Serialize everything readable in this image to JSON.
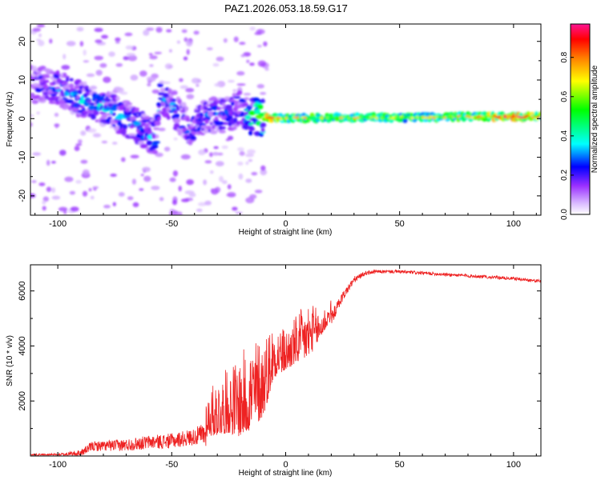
{
  "title": "PAZ1.2026.053.18.59.G17",
  "chart_data": [
    {
      "type": "heatmap",
      "name": "spectrogram",
      "xlabel": "Height of straight line (km)",
      "ylabel": "Frequency (Hz)",
      "xlim": [
        -112,
        112
      ],
      "ylim": [
        -25,
        24.5
      ],
      "xticks": [
        -100,
        -50,
        0,
        50,
        100
      ],
      "yticks": [
        -20,
        -10,
        0,
        10,
        20
      ],
      "colorbar": {
        "label": "Normalized spectral amplitude",
        "range": [
          0.0,
          0.97
        ],
        "ticks": [
          "0.0",
          "0.2",
          "0.4",
          "0.6",
          "0.8"
        ],
        "colors": [
          "#ffffff",
          "#9b30ff",
          "#0000ff",
          "#00ffff",
          "#00ff00",
          "#ffff00",
          "#ff8000",
          "#ff0000",
          "#ff1493"
        ]
      },
      "ridge": {
        "description": "dominant frequency track",
        "points": [
          [
            -110,
            9
          ],
          [
            -100,
            8
          ],
          [
            -90,
            5
          ],
          [
            -80,
            3
          ],
          [
            -70,
            0
          ],
          [
            -62,
            -3
          ],
          [
            -57,
            -5
          ],
          [
            -55,
            6
          ],
          [
            -48,
            2
          ],
          [
            -42,
            -3
          ],
          [
            -36,
            0
          ],
          [
            -30,
            1
          ],
          [
            -25,
            1
          ],
          [
            -20,
            3
          ],
          [
            -15,
            0.5
          ],
          [
            0,
            0
          ],
          [
            20,
            0.3
          ],
          [
            50,
            0.3
          ],
          [
            80,
            0.5
          ],
          [
            112,
            0.5
          ]
        ],
        "amplitude": [
          [
            -110,
            0.25
          ],
          [
            -90,
            0.35
          ],
          [
            -60,
            0.35
          ],
          [
            -40,
            0.3
          ],
          [
            -20,
            0.3
          ],
          [
            -10,
            0.75
          ],
          [
            0,
            0.55
          ],
          [
            20,
            0.55
          ],
          [
            50,
            0.5
          ],
          [
            80,
            0.55
          ],
          [
            100,
            0.8
          ],
          [
            112,
            0.6
          ]
        ]
      }
    },
    {
      "type": "line",
      "name": "snr",
      "xlabel": "Height of straight line (km)",
      "ylabel": "SNR (10 * v/v)",
      "xlim": [
        -112,
        112
      ],
      "ylim": [
        0,
        6950
      ],
      "xticks": [
        -100,
        -50,
        0,
        50,
        100
      ],
      "yticks": [
        2000,
        4000,
        6000
      ],
      "color": "#ee2222",
      "envelope": {
        "x": [
          -112,
          -100,
          -90,
          -85,
          -70,
          -60,
          -50,
          -40,
          -30,
          -25,
          -20,
          -15,
          -10,
          -5,
          0,
          5,
          10,
          15,
          20,
          25,
          30,
          35,
          40,
          50,
          60,
          70,
          80,
          90,
          100,
          112
        ],
        "base": [
          50,
          50,
          100,
          350,
          400,
          500,
          550,
          700,
          900,
          1000,
          900,
          1200,
          1600,
          3000,
          3200,
          3500,
          3700,
          4300,
          5000,
          5800,
          6400,
          6650,
          6700,
          6700,
          6650,
          6600,
          6550,
          6500,
          6450,
          6350
        ],
        "spread": [
          60,
          70,
          250,
          350,
          450,
          500,
          550,
          600,
          1400,
          1600,
          2000,
          2200,
          2000,
          1400,
          1000,
          1200,
          1400,
          700,
          500,
          350,
          250,
          150,
          120,
          120,
          120,
          120,
          120,
          120,
          120,
          120
        ]
      }
    }
  ]
}
